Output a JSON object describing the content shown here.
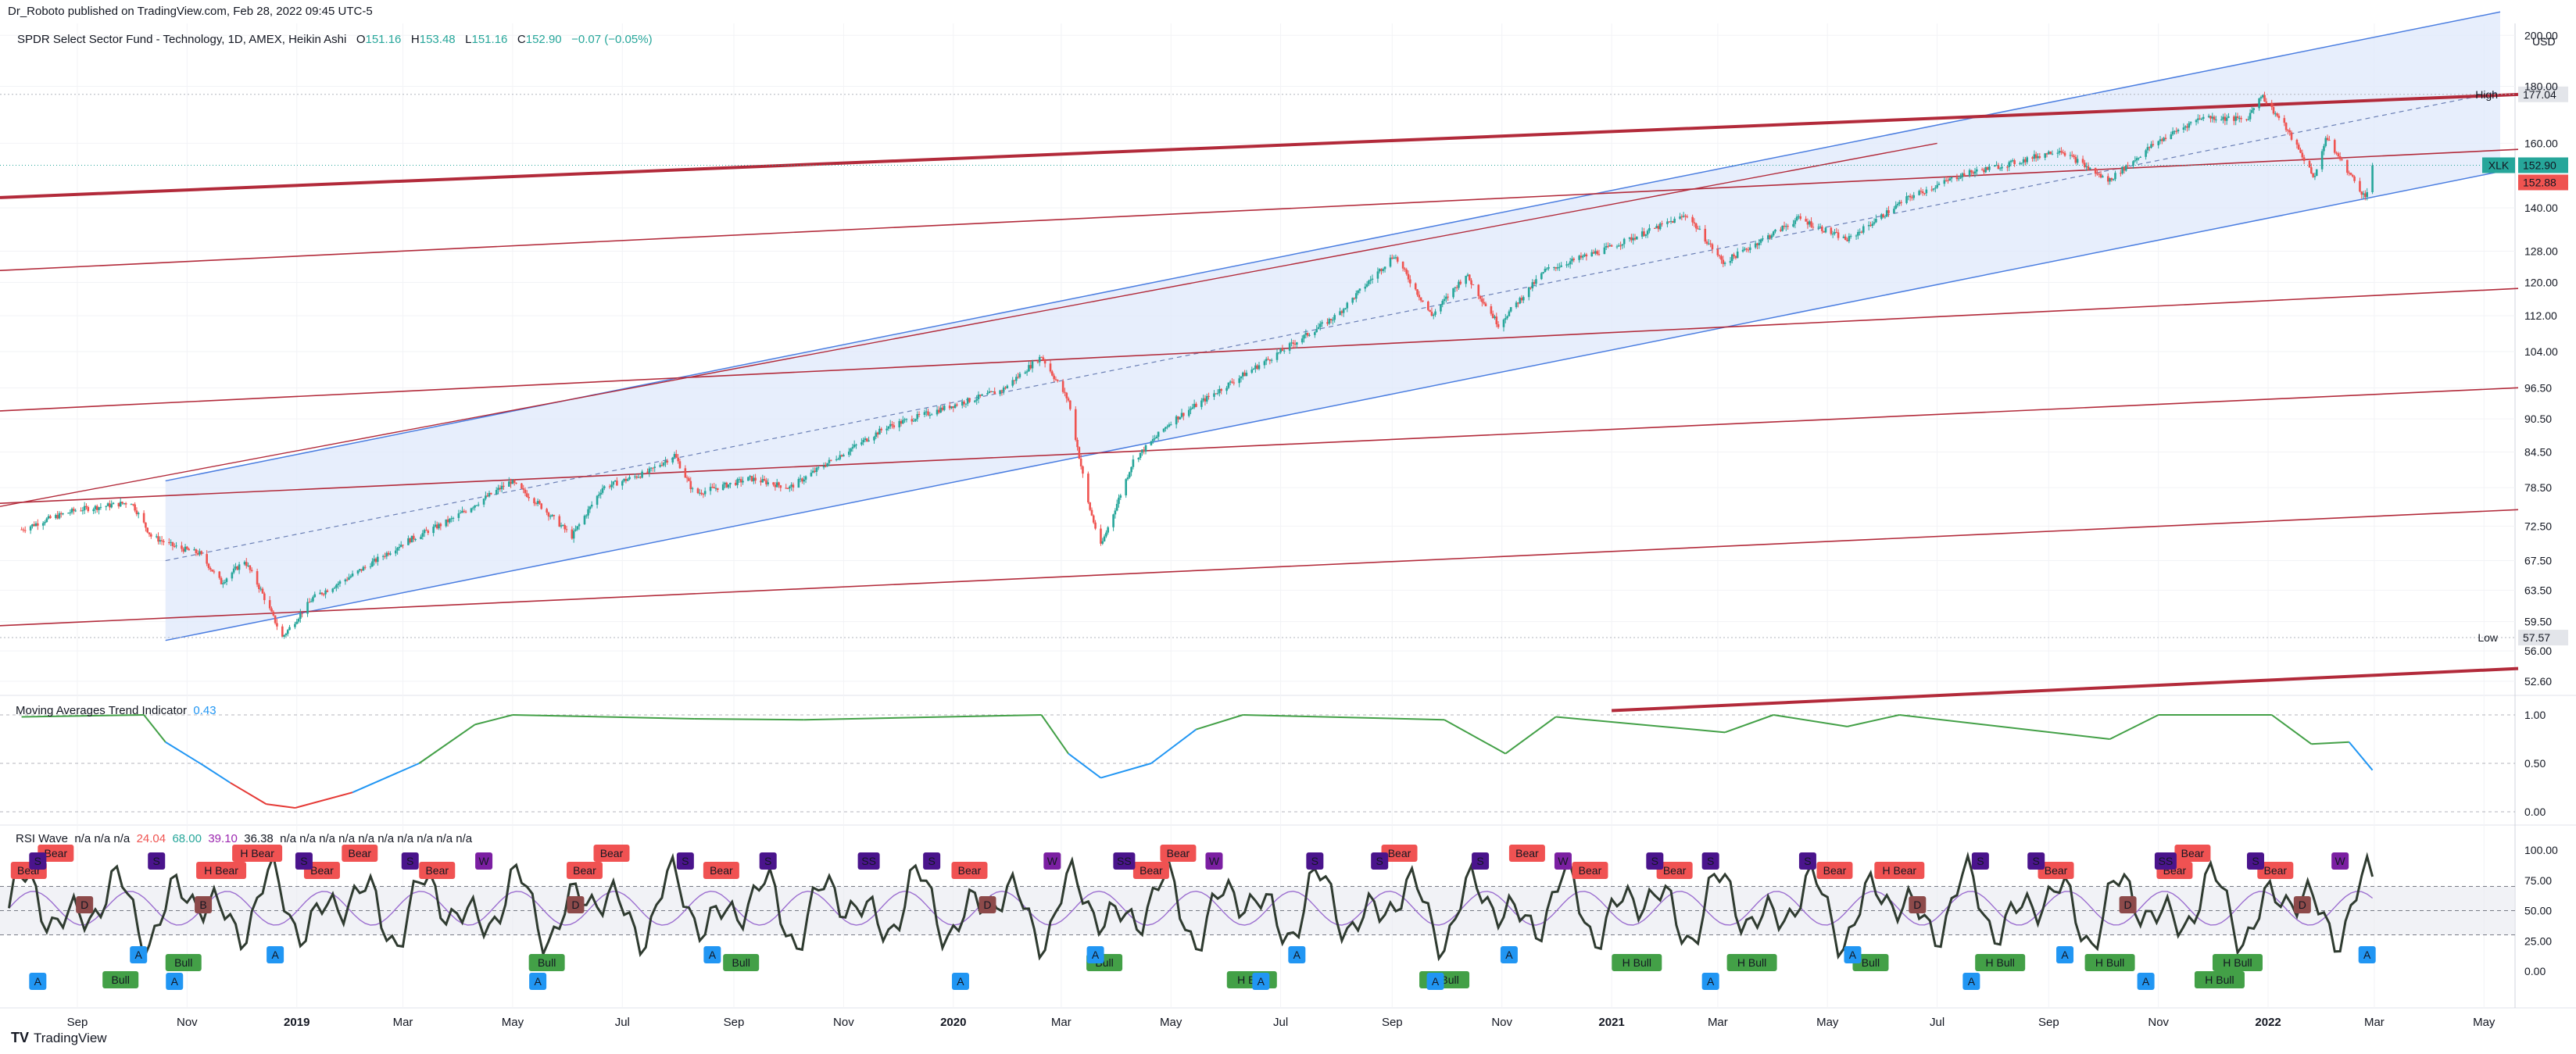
{
  "header": {
    "publisher": "Dr_Roboto published on TradingView.com, Feb 28, 2022 09:45 UTC-5",
    "symbol_desc": "SPDR Select Sector Fund - Technology, 1D, AMEX, Heikin Ashi",
    "o_label": "O",
    "o_val": "151.16",
    "h_label": "H",
    "h_val": "153.48",
    "l_label": "L",
    "l_val": "151.16",
    "c_label": "C",
    "c_val": "152.90",
    "change": "−0.07 (−0.05%)"
  },
  "brand": {
    "logo": "TV",
    "name": "TradingView"
  },
  "indicators": {
    "mat": {
      "name": "Moving Averages Trend Indicator",
      "value": "0.43"
    },
    "rsi": {
      "name": "RSI Wave",
      "na_values": "n/a  n/a  n/a",
      "v1": "24.04",
      "v2": "68.00",
      "v3": "39.10",
      "v4": "36.38",
      "na_tail": "n/a  n/a  n/a  n/a  n/a  n/a  n/a  n/a  n/a  n/a"
    }
  },
  "colors": {
    "up": "#26a69a",
    "down": "#ef5350",
    "channel": "#4a7de0",
    "channel_fill": "#dfe8fb",
    "resistance": "#b22a3a",
    "mat_green": "#43a047",
    "mat_blue": "#2196f3",
    "mat_red": "#e53935",
    "rsi_line": "#2f3b30",
    "rsi_ma": "#9c6fd0",
    "bull_label": "#43a047",
    "bear_label": "#f05252",
    "a_label": "#2196f3",
    "d_label": "#8d4a4a",
    "s_label": "#4a148c",
    "w_label": "#7b1fa2"
  },
  "chart_data": {
    "type": "candlestick",
    "symbol": "XLK",
    "price_axis": {
      "scale": "log",
      "ticks": [
        "200.00",
        "180.00",
        "160.00",
        "140.00",
        "128.00",
        "120.00",
        "112.00",
        "104.00",
        "96.50",
        "90.50",
        "84.50",
        "78.50",
        "72.50",
        "67.50",
        "63.50",
        "59.50",
        "56.00",
        "52.60"
      ],
      "currency": "USD",
      "ylim": [
        51.5,
        205
      ]
    },
    "time_axis": [
      "Sep",
      "Nov",
      "2019",
      "Mar",
      "May",
      "Jul",
      "Sep",
      "Nov",
      "2020",
      "Mar",
      "May",
      "Jul",
      "Sep",
      "Nov",
      "2021",
      "Mar",
      "May",
      "Jul",
      "Sep",
      "Nov",
      "2022",
      "Mar",
      "May"
    ],
    "markers": {
      "high": {
        "label": "High",
        "value": "177.04"
      },
      "low": {
        "label": "Low",
        "value": "57.57"
      },
      "last": {
        "label": "XLK",
        "value": "152.90"
      },
      "prev": {
        "value": "152.88"
      }
    },
    "price_path": [
      [
        "2018-08-01",
        72.0
      ],
      [
        "2018-08-15",
        73.5
      ],
      [
        "2018-09-01",
        75.0
      ],
      [
        "2018-09-15",
        75.5
      ],
      [
        "2018-10-01",
        76.2
      ],
      [
        "2018-10-12",
        71.0
      ],
      [
        "2018-10-25",
        69.5
      ],
      [
        "2018-11-08",
        68.5
      ],
      [
        "2018-11-20",
        64.5
      ],
      [
        "2018-12-03",
        67.5
      ],
      [
        "2018-12-12",
        63.5
      ],
      [
        "2018-12-24",
        57.6
      ],
      [
        "2019-01-10",
        62.5
      ],
      [
        "2019-02-01",
        65.5
      ],
      [
        "2019-03-01",
        70.0
      ],
      [
        "2019-03-28",
        73.5
      ],
      [
        "2019-04-30",
        79.5
      ],
      [
        "2019-05-15",
        76.0
      ],
      [
        "2019-06-03",
        71.0
      ],
      [
        "2019-06-20",
        78.5
      ],
      [
        "2019-07-15",
        81.0
      ],
      [
        "2019-07-30",
        84.0
      ],
      [
        "2019-08-10",
        77.5
      ],
      [
        "2019-09-10",
        80.0
      ],
      [
        "2019-10-02",
        78.5
      ],
      [
        "2019-10-25",
        83.0
      ],
      [
        "2019-11-25",
        89.0
      ],
      [
        "2019-12-31",
        93.0
      ],
      [
        "2020-01-28",
        96.0
      ],
      [
        "2020-02-19",
        103.0
      ],
      [
        "2020-03-05",
        94.0
      ],
      [
        "2020-03-16",
        76.0
      ],
      [
        "2020-03-23",
        69.5
      ],
      [
        "2020-04-10",
        83.0
      ],
      [
        "2020-05-01",
        90.0
      ],
      [
        "2020-06-01",
        97.0
      ],
      [
        "2020-07-01",
        104.0
      ],
      [
        "2020-08-01",
        112.0
      ],
      [
        "2020-09-02",
        127.0
      ],
      [
        "2020-09-23",
        112.0
      ],
      [
        "2020-10-12",
        122.0
      ],
      [
        "2020-10-30",
        110.0
      ],
      [
        "2020-11-25",
        123.0
      ],
      [
        "2020-12-31",
        129.0
      ],
      [
        "2021-02-12",
        138.0
      ],
      [
        "2021-03-04",
        125.0
      ],
      [
        "2021-04-15",
        137.0
      ],
      [
        "2021-05-12",
        131.0
      ],
      [
        "2021-06-15",
        143.0
      ],
      [
        "2021-07-15",
        150.0
      ],
      [
        "2021-08-15",
        154.0
      ],
      [
        "2021-09-07",
        158.0
      ],
      [
        "2021-10-04",
        148.0
      ],
      [
        "2021-10-30",
        160.0
      ],
      [
        "2021-11-25",
        169.0
      ],
      [
        "2021-12-20",
        168.0
      ],
      [
        "2021-12-28",
        177.0
      ],
      [
        "2022-01-10",
        166.0
      ],
      [
        "2022-01-27",
        149.0
      ],
      [
        "2022-02-02",
        162.0
      ],
      [
        "2022-02-24",
        143.0
      ],
      [
        "2022-02-28",
        152.9
      ]
    ],
    "mat_axis": [
      "1.00",
      "0.50",
      "0.00"
    ],
    "mat_path": [
      [
        "2018-08-01",
        0.98
      ],
      [
        "2018-10-08",
        1.0
      ],
      [
        "2018-10-20",
        0.72
      ],
      [
        "2018-11-10",
        0.48
      ],
      [
        "2018-11-25",
        0.3
      ],
      [
        "2018-12-15",
        0.08
      ],
      [
        "2018-12-31",
        0.04
      ],
      [
        "2019-02-01",
        0.2
      ],
      [
        "2019-03-10",
        0.5
      ],
      [
        "2019-04-10",
        0.9
      ],
      [
        "2019-05-01",
        1.0
      ],
      [
        "2019-08-10",
        0.96
      ],
      [
        "2019-10-10",
        0.95
      ],
      [
        "2020-02-19",
        1.0
      ],
      [
        "2020-03-05",
        0.6
      ],
      [
        "2020-03-23",
        0.35
      ],
      [
        "2020-04-20",
        0.5
      ],
      [
        "2020-05-15",
        0.85
      ],
      [
        "2020-06-10",
        1.0
      ],
      [
        "2020-09-30",
        0.95
      ],
      [
        "2020-11-03",
        0.6
      ],
      [
        "2020-12-01",
        0.98
      ],
      [
        "2021-03-05",
        0.82
      ],
      [
        "2021-04-01",
        1.0
      ],
      [
        "2021-05-12",
        0.88
      ],
      [
        "2021-06-10",
        1.0
      ],
      [
        "2021-10-05",
        0.75
      ],
      [
        "2021-11-01",
        1.0
      ],
      [
        "2022-01-03",
        1.0
      ],
      [
        "2022-01-25",
        0.7
      ],
      [
        "2022-02-15",
        0.72
      ],
      [
        "2022-02-28",
        0.43
      ]
    ],
    "rsi_axis": [
      "100.00",
      "75.00",
      "50.00",
      "25.00",
      "0.00"
    ],
    "rsi_levels": [
      70,
      50,
      30
    ],
    "signal_labels": [
      [
        "2018-08-05",
        "Bear"
      ],
      [
        "2018-08-20",
        "Bear"
      ],
      [
        "2018-09-25",
        "Bull"
      ],
      [
        "2018-10-30",
        "Bull"
      ],
      [
        "2018-11-20",
        "H Bear"
      ],
      [
        "2018-12-10",
        "H Bear"
      ],
      [
        "2019-01-15",
        "Bear"
      ],
      [
        "2019-02-05",
        "Bear"
      ],
      [
        "2019-03-20",
        "Bear"
      ],
      [
        "2019-05-20",
        "Bull"
      ],
      [
        "2019-06-10",
        "Bear"
      ],
      [
        "2019-06-25",
        "Bear"
      ],
      [
        "2019-08-25",
        "Bear"
      ],
      [
        "2019-09-05",
        "Bull"
      ],
      [
        "2020-01-10",
        "Bear"
      ],
      [
        "2020-03-25",
        "Bull"
      ],
      [
        "2020-04-20",
        "Bear"
      ],
      [
        "2020-05-05",
        "Bear"
      ],
      [
        "2020-06-15",
        "H Bull"
      ],
      [
        "2020-09-05",
        "Bear"
      ],
      [
        "2020-09-30",
        "H Bull"
      ],
      [
        "2020-11-15",
        "Bear"
      ],
      [
        "2020-12-20",
        "Bear"
      ],
      [
        "2021-01-15",
        "H Bull"
      ],
      [
        "2021-02-05",
        "Bear"
      ],
      [
        "2021-03-20",
        "H Bull"
      ],
      [
        "2021-05-05",
        "Bear"
      ],
      [
        "2021-05-25",
        "Bull"
      ],
      [
        "2021-06-10",
        "H Bear"
      ],
      [
        "2021-08-05",
        "H Bull"
      ],
      [
        "2021-09-05",
        "Bear"
      ],
      [
        "2021-10-05",
        "H Bull"
      ],
      [
        "2021-11-10",
        "Bear"
      ],
      [
        "2021-11-20",
        "Bear"
      ],
      [
        "2021-12-05",
        "H Bull"
      ],
      [
        "2021-12-15",
        "H Bull"
      ],
      [
        "2022-01-05",
        "Bear"
      ]
    ],
    "sd_labels": [
      [
        "2018-08-10",
        "S"
      ],
      [
        "2018-09-05",
        "D"
      ],
      [
        "2018-10-15",
        "S"
      ],
      [
        "2018-11-10",
        "B"
      ],
      [
        "2019-01-05",
        "S"
      ],
      [
        "2019-03-05",
        "S"
      ],
      [
        "2019-04-15",
        "W"
      ],
      [
        "2019-06-05",
        "D"
      ],
      [
        "2019-08-05",
        "S"
      ],
      [
        "2019-09-20",
        "S"
      ],
      [
        "2019-11-15",
        "SS"
      ],
      [
        "2019-12-20",
        "S"
      ],
      [
        "2020-01-20",
        "D"
      ],
      [
        "2020-02-25",
        "W"
      ],
      [
        "2020-04-05",
        "SS"
      ],
      [
        "2020-05-25",
        "W"
      ],
      [
        "2020-07-20",
        "S"
      ],
      [
        "2020-08-25",
        "S"
      ],
      [
        "2020-10-20",
        "S"
      ],
      [
        "2020-12-05",
        "W"
      ],
      [
        "2021-01-25",
        "S"
      ],
      [
        "2021-02-25",
        "S"
      ],
      [
        "2021-04-20",
        "S"
      ],
      [
        "2021-06-20",
        "D"
      ],
      [
        "2021-07-25",
        "S"
      ],
      [
        "2021-08-25",
        "S"
      ],
      [
        "2021-10-15",
        "D"
      ],
      [
        "2021-11-05",
        "SS"
      ],
      [
        "2021-12-25",
        "S"
      ],
      [
        "2022-01-20",
        "D"
      ],
      [
        "2022-02-10",
        "W"
      ]
    ],
    "a_labels": [
      "2018-08-10",
      "2018-10-05",
      "2018-10-25",
      "2018-12-20",
      "2019-05-15",
      "2019-08-20",
      "2020-01-05",
      "2020-03-20",
      "2020-06-20",
      "2020-07-10",
      "2020-09-25",
      "2020-11-05",
      "2021-02-25",
      "2021-05-15",
      "2021-07-20",
      "2021-09-10",
      "2021-10-25",
      "2022-02-25"
    ]
  }
}
